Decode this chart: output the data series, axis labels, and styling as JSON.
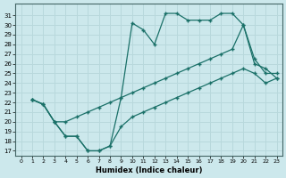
{
  "xlabel": "Humidex (Indice chaleur)",
  "bg_color": "#cce8ec",
  "grid_color": "#b8d8dc",
  "line_color": "#1a7068",
  "xlim": [
    -0.5,
    23.5
  ],
  "ylim": [
    16.5,
    32.2
  ],
  "xticks": [
    0,
    1,
    2,
    3,
    4,
    5,
    6,
    7,
    8,
    9,
    10,
    11,
    12,
    13,
    14,
    15,
    16,
    17,
    18,
    19,
    20,
    21,
    22,
    23
  ],
  "yticks": [
    17,
    18,
    19,
    20,
    21,
    22,
    23,
    24,
    25,
    26,
    27,
    28,
    29,
    30,
    31
  ],
  "line1_x": [
    1,
    2,
    3,
    4,
    5,
    6,
    7,
    8,
    9,
    10,
    11,
    12,
    13,
    14,
    15,
    16,
    17,
    18,
    19,
    20,
    21,
    22,
    23
  ],
  "line1_y": [
    22.3,
    21.8,
    20.0,
    18.5,
    18.5,
    17.0,
    17.0,
    17.5,
    22.5,
    30.2,
    29.5,
    28.0,
    31.2,
    31.2,
    30.5,
    30.5,
    30.5,
    31.2,
    31.2,
    30.0,
    26.5,
    25.0,
    25.0
  ],
  "line2_x": [
    1,
    2,
    3,
    4,
    5,
    6,
    7,
    8,
    9,
    10,
    11,
    12,
    13,
    14,
    15,
    16,
    17,
    18,
    19,
    20,
    21,
    22,
    23
  ],
  "line2_y": [
    22.3,
    21.8,
    20.0,
    20.0,
    20.5,
    21.0,
    21.5,
    22.0,
    22.5,
    23.0,
    23.5,
    24.0,
    24.5,
    25.0,
    25.5,
    26.0,
    26.5,
    27.0,
    27.5,
    30.0,
    26.0,
    25.5,
    24.5
  ],
  "line3_x": [
    1,
    2,
    3,
    4,
    5,
    6,
    7,
    8,
    9,
    10,
    11,
    12,
    13,
    14,
    15,
    16,
    17,
    18,
    19,
    20,
    21,
    22,
    23
  ],
  "line3_y": [
    22.3,
    21.8,
    20.0,
    18.5,
    18.5,
    17.0,
    17.0,
    17.5,
    19.5,
    20.5,
    21.0,
    21.5,
    22.0,
    22.5,
    23.0,
    23.5,
    24.0,
    24.5,
    25.0,
    25.5,
    25.0,
    24.0,
    24.5
  ]
}
